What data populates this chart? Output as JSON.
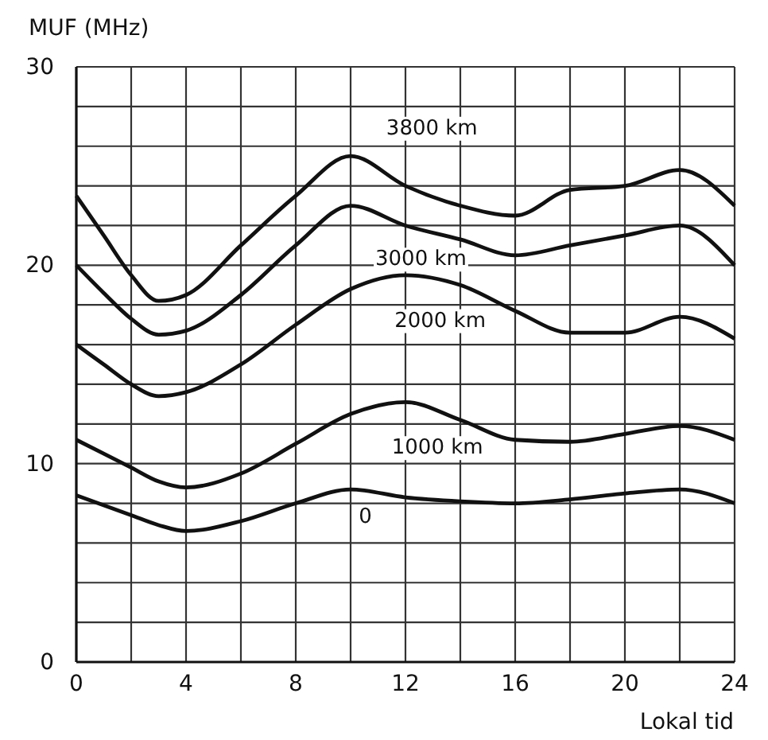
{
  "chart_data": {
    "type": "line",
    "xlabel": "Lokal tid",
    "ylabel": "MUF (MHz)",
    "x": [
      0,
      1,
      2,
      3,
      4,
      6,
      8,
      10,
      12,
      14,
      16,
      18,
      20,
      22,
      24
    ],
    "xlim": [
      0,
      24
    ],
    "ylim": [
      0,
      30
    ],
    "xticks": [
      0,
      {
        "value": 2,
        "label": null
      },
      4,
      {
        "value": 6,
        "label": null
      },
      8,
      {
        "value": 10,
        "label": null
      },
      12,
      {
        "value": 14,
        "label": null
      },
      16,
      {
        "value": 18,
        "label": null
      },
      20,
      {
        "value": 22,
        "label": null
      },
      24
    ],
    "yticks": [
      0,
      {
        "value": 2,
        "label": null
      },
      {
        "value": 4,
        "label": null
      },
      {
        "value": 6,
        "label": null
      },
      {
        "value": 8,
        "label": null
      },
      10,
      {
        "value": 12,
        "label": null
      },
      {
        "value": 14,
        "label": null
      },
      {
        "value": 16,
        "label": null
      },
      {
        "value": 18,
        "label": null
      },
      20,
      {
        "value": 22,
        "label": null
      },
      {
        "value": 24,
        "label": null
      },
      {
        "value": 26,
        "label": null
      },
      {
        "value": 28,
        "label": null
      },
      30
    ],
    "grid": true,
    "legend": false,
    "marker": "none",
    "line_style": "solid",
    "series": [
      {
        "name": "3800 km",
        "color": "#111111",
        "values": [
          23.5,
          21.5,
          19.5,
          18.2,
          18.5,
          21,
          23.5,
          25.5,
          24,
          23,
          22.5,
          23.8,
          24,
          24.8,
          23
        ]
      },
      {
        "name": "3000 km",
        "color": "#111111",
        "values": [
          20,
          18.6,
          17.3,
          16.5,
          16.7,
          18.5,
          21,
          23,
          22,
          21.3,
          20.5,
          21,
          21.5,
          22,
          20
        ]
      },
      {
        "name": "2000 km",
        "color": "#111111",
        "values": [
          16,
          15,
          14,
          13.4,
          13.6,
          15,
          17,
          18.8,
          19.5,
          19,
          17.7,
          16.6,
          16.6,
          17.4,
          16.3
        ]
      },
      {
        "name": "1000 km",
        "color": "#111111",
        "values": [
          11.2,
          10.5,
          9.8,
          9.1,
          8.8,
          9.5,
          11,
          12.5,
          13.1,
          12.2,
          11.2,
          11.1,
          11.5,
          11.9,
          11.2
        ]
      },
      {
        "name": "0",
        "color": "#111111",
        "values": [
          8.4,
          7.9,
          7.4,
          6.9,
          6.6,
          7.1,
          8,
          8.7,
          8.3,
          8.1,
          8,
          8.2,
          8.5,
          8.7,
          8
        ]
      }
    ]
  }
}
